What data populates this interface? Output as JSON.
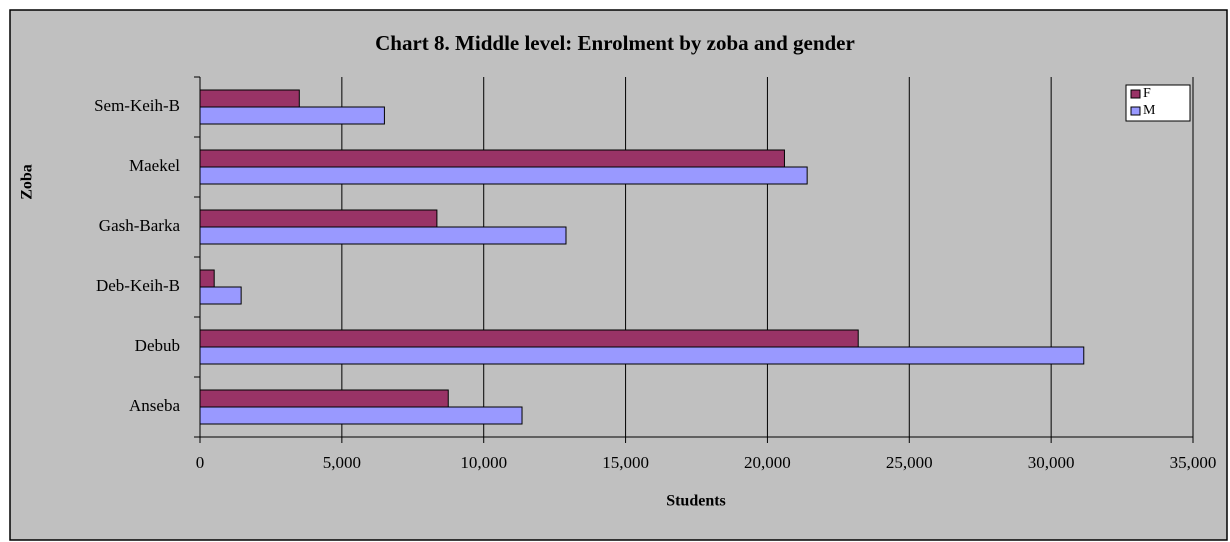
{
  "chart_data": {
    "type": "hbar",
    "title": "Chart 8. Middle level: Enrolment by zoba and gender",
    "x_label": "Students",
    "y_label": "Zoba",
    "categories": [
      "Anseba",
      "Debub",
      "Deb-Keih-B",
      "Gash-Barka",
      "Maekel",
      "Sem-Keih-B"
    ],
    "series": [
      {
        "name": "F",
        "color": "#993366",
        "values": [
          8750,
          23200,
          500,
          8350,
          20600,
          3500
        ]
      },
      {
        "name": "M",
        "color": "#9999ff",
        "values": [
          11350,
          31150,
          1450,
          12900,
          21400,
          6500
        ]
      }
    ],
    "xlim": [
      0,
      35000
    ],
    "xticks": [
      0,
      {
        "value": 5000,
        "label": "5,000"
      },
      {
        "value": 10000,
        "label": "10,000"
      },
      {
        "value": 15000,
        "label": "15,000"
      },
      {
        "value": 20000,
        "label": "20,000"
      },
      {
        "value": 25000,
        "label": "25,000"
      },
      {
        "value": 30000,
        "label": "30,000"
      },
      {
        "value": 35000,
        "label": "35,000"
      }
    ],
    "grid": true,
    "legend": "top-right"
  }
}
